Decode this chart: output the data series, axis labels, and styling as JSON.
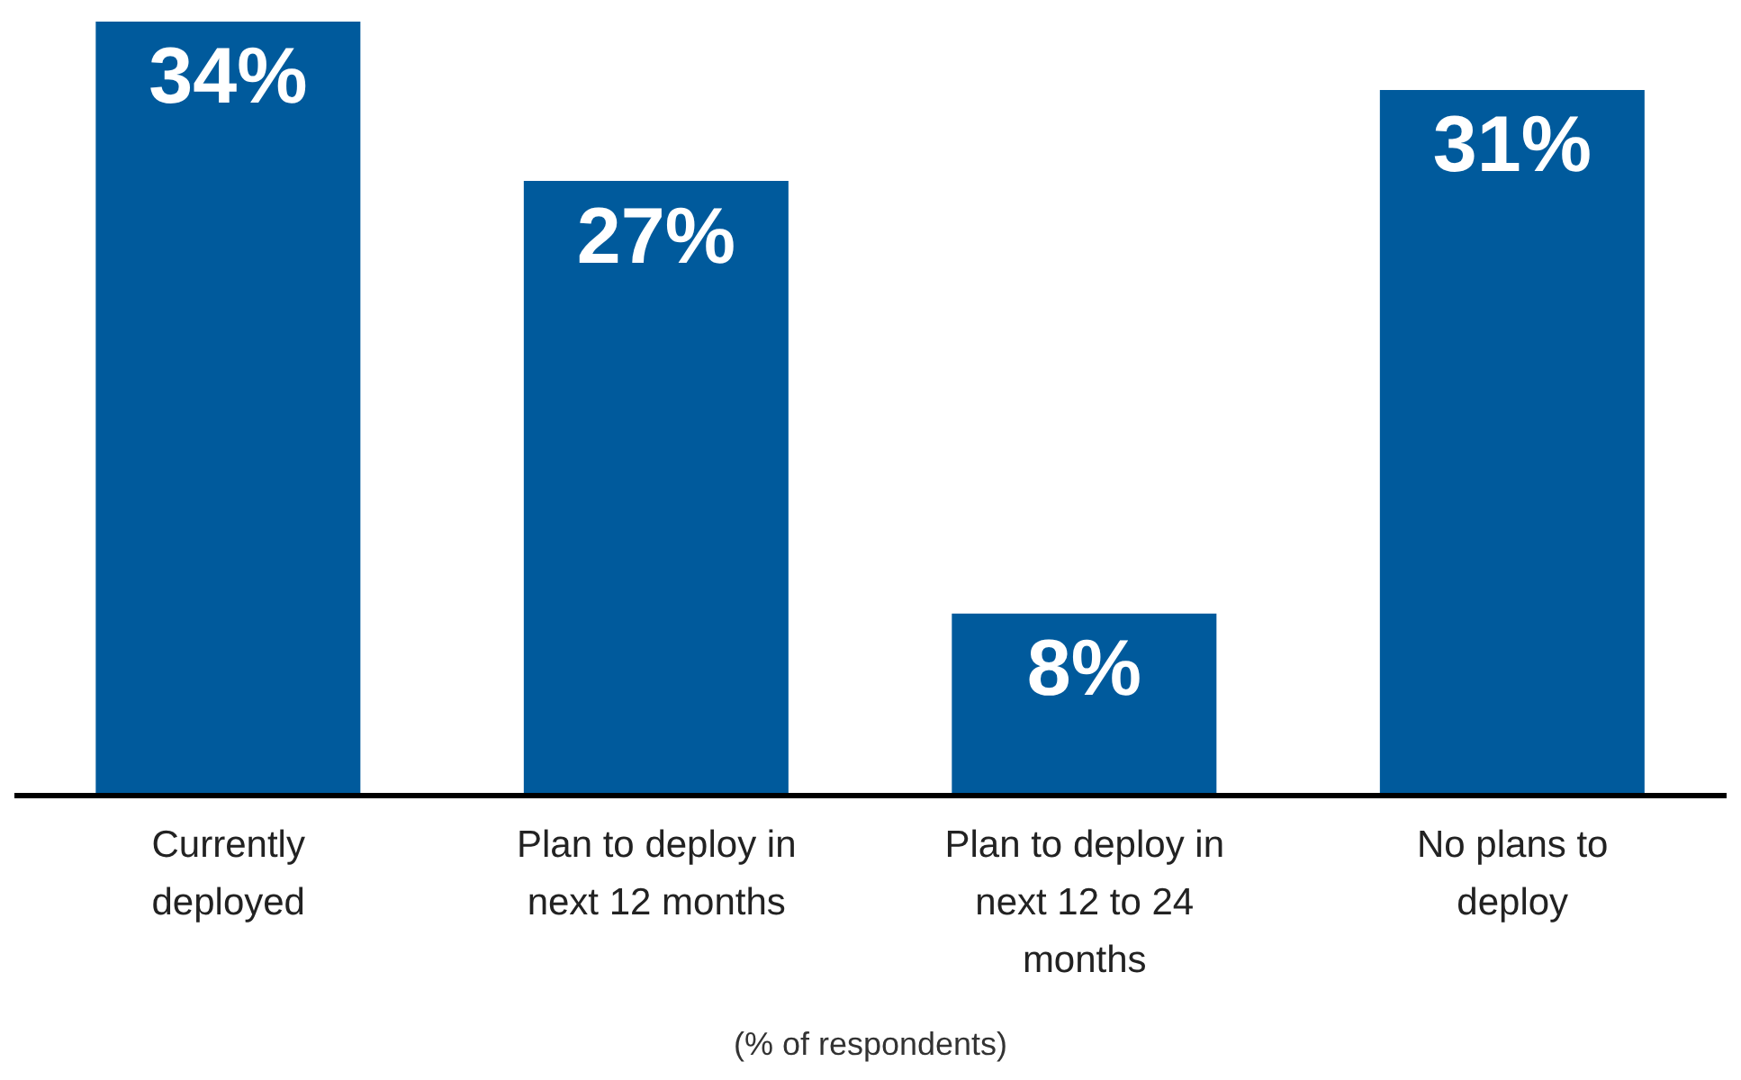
{
  "chart_data": {
    "type": "bar",
    "relative": false,
    "xlabel": "(% of respondents)",
    "categories": [
      "Currently deployed",
      "Plan to deploy in next 12 months",
      "Plan to deploy in next 12 to 24 months",
      "No plans to deploy"
    ],
    "values": [
      34,
      27,
      8,
      31
    ],
    "value_labels": [
      "34%",
      "27%",
      "8%",
      "31%"
    ],
    "color": "#005a9c"
  }
}
